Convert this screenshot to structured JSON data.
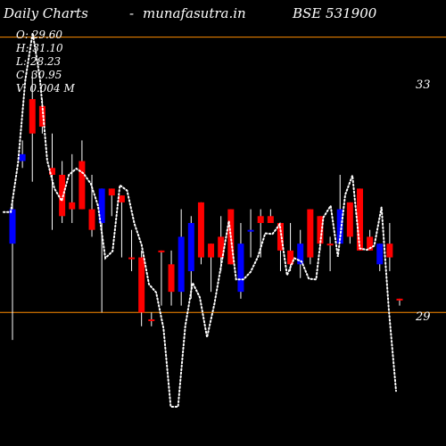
{
  "header": {
    "title": "Daily Charts",
    "separator": "-",
    "site": "munafasutra.in",
    "symbol": "BSE 531900"
  },
  "ohlc": {
    "open": "O: 29.60",
    "high": "H: 31.10",
    "low": "L: 28.23",
    "close": "C: 30.95",
    "volume": "V: 0.004  M"
  },
  "colors": {
    "background": "#000000",
    "up": "#0000ff",
    "down": "#ff0000",
    "level_line": "#ff8c00",
    "text": "#ffffff",
    "ma_line": "#ffffff"
  },
  "chart_data": {
    "type": "candlestick",
    "y_range": [
      27.06,
      33.54
    ],
    "levels": [
      {
        "value": 33,
        "label": "33"
      },
      {
        "value": 29,
        "label": "29"
      }
    ],
    "candles": [
      {
        "o": 30.0,
        "h": 30.6,
        "l": 28.6,
        "c": 30.5,
        "up": true
      },
      {
        "o": 31.3,
        "h": 31.5,
        "l": 31.1,
        "c": 31.2,
        "up": true
      },
      {
        "o": 32.1,
        "h": 32.5,
        "l": 30.9,
        "c": 31.6,
        "up": false
      },
      {
        "o": 32.0,
        "h": 32.1,
        "l": 31.6,
        "c": 31.7,
        "up": false
      },
      {
        "o": 31.1,
        "h": 31.6,
        "l": 30.2,
        "c": 31.0,
        "up": false
      },
      {
        "o": 31.0,
        "h": 31.2,
        "l": 30.3,
        "c": 30.4,
        "up": false
      },
      {
        "o": 30.6,
        "h": 31.3,
        "l": 30.3,
        "c": 30.5,
        "up": false
      },
      {
        "o": 31.2,
        "h": 31.5,
        "l": 30.5,
        "c": 30.5,
        "up": false
      },
      {
        "o": 30.5,
        "h": 31.0,
        "l": 30.1,
        "c": 30.2,
        "up": false
      },
      {
        "o": 30.3,
        "h": 30.8,
        "l": 29.0,
        "c": 30.8,
        "up": true
      },
      {
        "o": 30.8,
        "h": 30.8,
        "l": 30.4,
        "c": 30.7,
        "up": false
      },
      {
        "o": 30.7,
        "h": 30.7,
        "l": 29.8,
        "c": 30.6,
        "up": false
      },
      {
        "o": 29.8,
        "h": 30.2,
        "l": 29.6,
        "c": 29.8,
        "up": false
      },
      {
        "o": 29.8,
        "h": 29.9,
        "l": 28.8,
        "c": 29.0,
        "up": false
      },
      {
        "o": 28.9,
        "h": 29.0,
        "l": 28.8,
        "c": 28.9,
        "up": false
      },
      {
        "o": 29.9,
        "h": 29.9,
        "l": 29.1,
        "c": 29.9,
        "up": false
      },
      {
        "o": 29.7,
        "h": 29.9,
        "l": 29.1,
        "c": 29.3,
        "up": false
      },
      {
        "o": 29.3,
        "h": 30.5,
        "l": 29.1,
        "c": 30.1,
        "up": true
      },
      {
        "o": 29.6,
        "h": 30.4,
        "l": 29.2,
        "c": 30.3,
        "up": true
      },
      {
        "o": 30.6,
        "h": 30.6,
        "l": 29.7,
        "c": 29.8,
        "up": false
      },
      {
        "o": 30.0,
        "h": 30.0,
        "l": 29.3,
        "c": 29.8,
        "up": false
      },
      {
        "o": 30.1,
        "h": 30.4,
        "l": 29.6,
        "c": 29.8,
        "up": false
      },
      {
        "o": 30.5,
        "h": 30.5,
        "l": 29.7,
        "c": 29.7,
        "up": false
      },
      {
        "o": 29.3,
        "h": 30.3,
        "l": 29.2,
        "c": 30.0,
        "up": true
      },
      {
        "o": 30.2,
        "h": 30.5,
        "l": 29.8,
        "c": 30.2,
        "up": true
      },
      {
        "o": 30.4,
        "h": 30.5,
        "l": 29.8,
        "c": 30.3,
        "up": false
      },
      {
        "o": 30.4,
        "h": 30.5,
        "l": 30.3,
        "c": 30.3,
        "up": false
      },
      {
        "o": 30.3,
        "h": 30.3,
        "l": 29.6,
        "c": 29.9,
        "up": false
      },
      {
        "o": 29.9,
        "h": 30.3,
        "l": 29.6,
        "c": 29.7,
        "up": false
      },
      {
        "o": 29.7,
        "h": 30.2,
        "l": 29.5,
        "c": 30.0,
        "up": true
      },
      {
        "o": 30.5,
        "h": 30.5,
        "l": 29.7,
        "c": 29.8,
        "up": false
      },
      {
        "o": 30.4,
        "h": 30.4,
        "l": 29.9,
        "c": 30.0,
        "up": false
      },
      {
        "o": 30.0,
        "h": 30.1,
        "l": 29.6,
        "c": 30.0,
        "up": false
      },
      {
        "o": 30.0,
        "h": 31.0,
        "l": 30.0,
        "c": 30.5,
        "up": true
      },
      {
        "o": 30.6,
        "h": 30.6,
        "l": 30.0,
        "c": 30.1,
        "up": false
      },
      {
        "o": 30.8,
        "h": 30.8,
        "l": 29.9,
        "c": 29.9,
        "up": false
      },
      {
        "o": 30.1,
        "h": 30.2,
        "l": 29.9,
        "c": 29.9,
        "up": false
      },
      {
        "o": 29.7,
        "h": 30.0,
        "l": 29.6,
        "c": 30.0,
        "up": true
      },
      {
        "o": 30.0,
        "h": 30.3,
        "l": 29.6,
        "c": 29.8,
        "up": false
      },
      {
        "o": 29.2,
        "h": 29.2,
        "l": 29.1,
        "c": 29.2,
        "up": false
      }
    ],
    "moving_average": [
      30.46,
      30.46,
      31.18,
      32.38,
      33.06,
      32.41,
      31.21,
      30.8,
      30.62,
      31.0,
      31.09,
      31.02,
      30.87,
      30.55,
      29.79,
      29.89,
      30.85,
      30.77,
      30.29,
      29.98,
      29.41,
      29.29,
      28.77,
      27.63,
      27.63,
      28.8,
      29.43,
      29.22,
      28.64,
      29.12,
      29.72,
      30.33,
      29.48,
      29.48,
      29.59,
      29.81,
      30.15,
      30.14,
      30.28,
      29.54,
      29.79,
      29.74,
      29.49,
      29.48,
      30.38,
      30.55,
      29.81,
      30.71,
      30.99,
      29.93,
      29.91,
      29.97,
      30.53,
      29.04,
      27.86
    ]
  }
}
